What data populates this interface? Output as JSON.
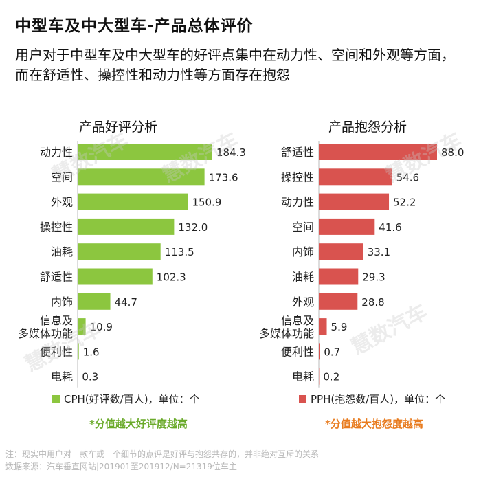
{
  "header": {
    "title": "中型车及中大型车-产品总体评价",
    "subtitle": "用户对于中型车及中大型车的好评点集中在动力性、空间和外观等方面，而在舒适性、操控性和动力性等方面存在抱怨"
  },
  "watermark": "慧数汽车",
  "colors": {
    "praise": "#8cc63f",
    "complaint": "#d9534f",
    "praise_note": "#6aaa2a",
    "complaint_note": "#e87b1e"
  },
  "chart_data": [
    {
      "type": "bar",
      "orientation": "horizontal",
      "title": "产品好评分析",
      "categories": [
        "动力性",
        "空间",
        "外观",
        "操控性",
        "油耗",
        "舒适性",
        "内饰",
        "信息及多媒体功能",
        "便利性",
        "电耗"
      ],
      "category_display": [
        [
          "动力性"
        ],
        [
          "空间"
        ],
        [
          "外观"
        ],
        [
          "操控性"
        ],
        [
          "油耗"
        ],
        [
          "舒适性"
        ],
        [
          "内饰"
        ],
        [
          "信息及",
          "多媒体功能"
        ],
        [
          "便利性"
        ],
        [
          "电耗"
        ]
      ],
      "values": [
        184.3,
        173.6,
        150.9,
        132.0,
        113.5,
        102.3,
        44.7,
        10.9,
        1.6,
        0.3
      ],
      "value_labels": [
        "184.3",
        "173.6",
        "150.9",
        "132.0",
        "113.5",
        "102.3",
        "44.7",
        "10.9",
        "1.6",
        "0.3"
      ],
      "legend": "CPH(好评数/百人)，单位：个",
      "note": "*分值越大好评度越高",
      "color": "#8cc63f"
    },
    {
      "type": "bar",
      "orientation": "horizontal",
      "title": "产品抱怨分析",
      "categories": [
        "舒适性",
        "操控性",
        "动力性",
        "空间",
        "内饰",
        "油耗",
        "外观",
        "信息及多媒体功能",
        "便利性",
        "电耗"
      ],
      "category_display": [
        [
          "舒适性"
        ],
        [
          "操控性"
        ],
        [
          "动力性"
        ],
        [
          "空间"
        ],
        [
          "内饰"
        ],
        [
          "油耗"
        ],
        [
          "外观"
        ],
        [
          "信息及",
          "多媒体功能"
        ],
        [
          "便利性"
        ],
        [
          "电耗"
        ]
      ],
      "values": [
        88.0,
        54.6,
        52.2,
        41.6,
        33.1,
        29.3,
        28.8,
        5.9,
        0.7,
        0.2
      ],
      "value_labels": [
        "88.0",
        "54.6",
        "52.2",
        "41.6",
        "33.1",
        "29.3",
        "28.8",
        "5.9",
        "0.7",
        "0.2"
      ],
      "legend": "PPH(抱怨数/百人)，单位：个",
      "note": "*分值越大抱怨度越高",
      "color": "#d9534f"
    }
  ],
  "footnotes": [
    "注：现实中用户对一款车或一个细节的点评是好评与抱怨共存的，并非绝对互斥的关系",
    "数据来源：汽车垂直网站|201901至201912/N=21319位车主"
  ]
}
